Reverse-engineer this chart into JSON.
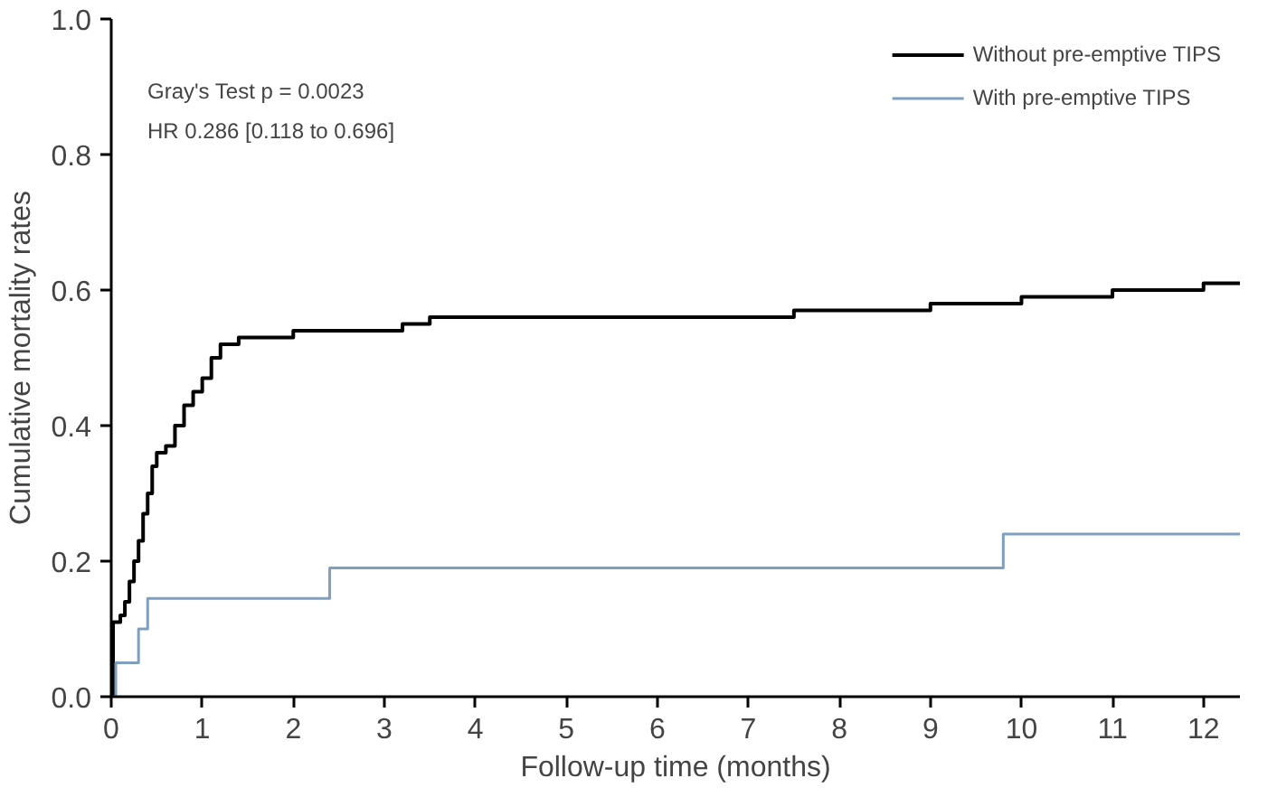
{
  "chart_data": {
    "type": "step",
    "xlabel": "Follow-up time (months)",
    "ylabel": "Cumulative mortality rates",
    "xlim": [
      0,
      12.4
    ],
    "ylim": [
      0,
      1.0
    ],
    "xticks": [
      0,
      1,
      2,
      3,
      4,
      5,
      6,
      7,
      8,
      9,
      10,
      11,
      12
    ],
    "yticks": [
      {
        "value": 0,
        "label": "0.0"
      },
      {
        "value": 0.2,
        "label": "0.2"
      },
      {
        "value": 0.4,
        "label": "0.4"
      },
      {
        "value": 0.6,
        "label": "0.6"
      },
      {
        "value": 0.8,
        "label": "0.8"
      },
      {
        "value": 1.0,
        "label": "1.0"
      }
    ],
    "grid": false,
    "legend": "top right",
    "line_style": "solid",
    "marker": "none",
    "annotations": [
      "Gray's Test p = 0.0023",
      "HR 0.286 [0.118 to 0.696]"
    ],
    "series": [
      {
        "name": "Without pre-emptive TIPS",
        "color": "#000000",
        "x": [
          0,
          0.02,
          0.1,
          0.15,
          0.2,
          0.25,
          0.3,
          0.35,
          0.4,
          0.45,
          0.5,
          0.6,
          0.7,
          0.8,
          0.9,
          1.0,
          1.1,
          1.2,
          1.4,
          2.0,
          3.2,
          3.5,
          7.0,
          7.5,
          9.0,
          10.0,
          11.0,
          12.0,
          12.4
        ],
        "values": [
          0,
          0.11,
          0.12,
          0.14,
          0.17,
          0.2,
          0.23,
          0.27,
          0.3,
          0.34,
          0.36,
          0.37,
          0.4,
          0.43,
          0.45,
          0.47,
          0.5,
          0.52,
          0.53,
          0.54,
          0.55,
          0.56,
          0.56,
          0.57,
          0.58,
          0.59,
          0.6,
          0.61,
          0.61
        ]
      },
      {
        "name": "With pre-emptive TIPS",
        "color": "#7f9fbf",
        "x": [
          0,
          0.05,
          0.3,
          0.4,
          2.4,
          9.8,
          12.4
        ],
        "values": [
          0,
          0.05,
          0.1,
          0.145,
          0.19,
          0.24,
          0.24
        ]
      }
    ]
  }
}
